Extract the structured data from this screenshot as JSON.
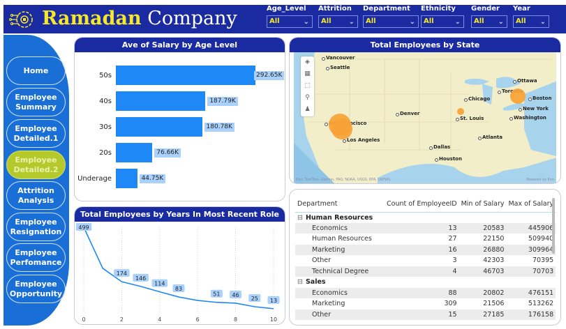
{
  "header": {
    "brand_part1": "Ramadan",
    "brand_part2": "Company",
    "logo_icon": "gear-circuit-icon"
  },
  "slicers": [
    {
      "label": "Age_Level",
      "value": "All"
    },
    {
      "label": "Attrition",
      "value": "All"
    },
    {
      "label": "Department",
      "value": "All"
    },
    {
      "label": "Ethnicity",
      "value": "All"
    },
    {
      "label": "Gender",
      "value": "All"
    },
    {
      "label": "Year",
      "value": "All"
    }
  ],
  "nav": [
    {
      "label": "Home",
      "active": false
    },
    {
      "label": "Employee Summary",
      "active": false
    },
    {
      "label": "Employee Detailed.1",
      "active": false
    },
    {
      "label": "Employee Detailed.2",
      "active": true
    },
    {
      "label": "Attrition Analysis",
      "active": false
    },
    {
      "label": "Employee Resignation",
      "active": false
    },
    {
      "label": "Employee Perfomance",
      "active": false
    },
    {
      "label": "Employee Opportunity",
      "active": false
    }
  ],
  "colors": {
    "brand": "#1a2aa0",
    "accent": "#f5e82a",
    "bar": "#1e88f7",
    "active_nav": "#b5c92a",
    "bubble": "#f7a235"
  },
  "chart_data": [
    {
      "type": "bar",
      "orientation": "horizontal",
      "title": "Ave of Salary by Age Level",
      "categories": [
        "50s",
        "40s",
        "30s",
        "20s",
        "Underage"
      ],
      "values": [
        292650,
        187790,
        180780,
        76660,
        44750
      ],
      "data_labels": [
        "292.65K",
        "187.79K",
        "180.78K",
        "76.66K",
        "44.75K"
      ],
      "xlabel": "",
      "ylabel": ""
    },
    {
      "type": "line",
      "title": "Total Employees by Years In Most Recent Role",
      "x": [
        0,
        1,
        2,
        3,
        4,
        5,
        6,
        7,
        8,
        9,
        10
      ],
      "values": [
        499,
        254,
        174,
        146,
        114,
        83,
        62,
        51,
        46,
        25,
        13
      ],
      "data_labels": [
        "499",
        "",
        "174",
        "146",
        "114",
        "83",
        "",
        "51",
        "46",
        "25",
        "13"
      ],
      "x_ticks": [
        "0",
        "2",
        "4",
        "6",
        "8",
        "10"
      ],
      "xlim": [
        0,
        10
      ],
      "ylim": [
        0,
        499
      ],
      "grid": "vertical dotted"
    }
  ],
  "map": {
    "title": "Total Employees by State",
    "cities": [
      "Vancouver",
      "Seattle",
      "Ottawa",
      "Toronto",
      "Boston",
      "New York",
      "Chicago",
      "Denver",
      "St. Louis",
      "Washington",
      "San Francisco",
      "Los Angeles",
      "Atlanta",
      "Dallas",
      "Houston"
    ],
    "bubbles": [
      {
        "location": "California (San Francisco/Los Angeles)",
        "size": "largest"
      },
      {
        "location": "New York",
        "size": "large"
      },
      {
        "location": "Illinois (St. Louis area)",
        "size": "small"
      }
    ],
    "tools": [
      "layers-icon",
      "grid-icon",
      "select-icon",
      "search-icon",
      "person-icon"
    ],
    "attribution": "Esri, TomTom, Garmin, FAO, NOAA, USGS, EPA, USFWS",
    "powered_by": "Powered by Esri"
  },
  "table": {
    "columns": [
      "Department",
      "Count of EmployeeID",
      "Min of Salary",
      "Max of Salary"
    ],
    "rows": [
      {
        "type": "group",
        "name": "Human Resources"
      },
      {
        "type": "row",
        "name": "Economics",
        "count": "13",
        "min": "20583",
        "max": "445906"
      },
      {
        "type": "row",
        "name": "Human Resources",
        "count": "27",
        "min": "22150",
        "max": "509940"
      },
      {
        "type": "row",
        "name": "Marketing",
        "count": "16",
        "min": "26880",
        "max": "309964"
      },
      {
        "type": "row",
        "name": "Other",
        "count": "3",
        "min": "42303",
        "max": "70395"
      },
      {
        "type": "row",
        "name": "Technical Degree",
        "count": "4",
        "min": "46703",
        "max": "70703"
      },
      {
        "type": "group",
        "name": "Sales"
      },
      {
        "type": "row",
        "name": "Economics",
        "count": "88",
        "min": "20802",
        "max": "476151"
      },
      {
        "type": "row",
        "name": "Marketing",
        "count": "309",
        "min": "21506",
        "max": "513262"
      },
      {
        "type": "row",
        "name": "Other",
        "count": "15",
        "min": "27185",
        "max": "176158"
      }
    ]
  }
}
